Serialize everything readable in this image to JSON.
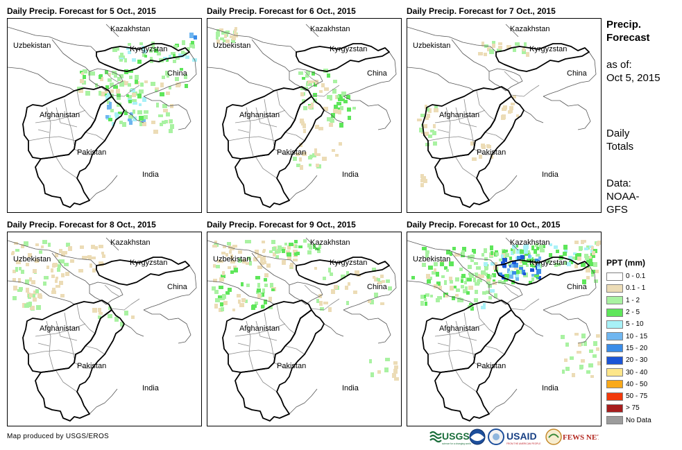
{
  "panels": [
    {
      "title": "Daily Precip. Forecast for 5 Oct., 2015"
    },
    {
      "title": "Daily Precip. Forecast for 6 Oct., 2015"
    },
    {
      "title": "Daily Precip. Forecast for 7 Oct., 2015"
    },
    {
      "title": "Daily Precip. Forecast for 8 Oct., 2015"
    },
    {
      "title": "Daily Precip. Forecast for 9 Oct., 2015"
    },
    {
      "title": "Daily Precip. Forecast for 10 Oct., 2015"
    }
  ],
  "map_labels": {
    "kazakhstan": "Kazakhstan",
    "uzbekistan": "Uzbekistan",
    "kyrgyzstan": "Kyrgyzstan",
    "china": "China",
    "afghanistan": "Afghanistan",
    "pakistan": "Pakistan",
    "india": "India"
  },
  "sidebar": {
    "title_line1": "Precip.",
    "title_line2": "Forecast",
    "asof_line1": "as of:",
    "asof_line2": "Oct 5, 2015",
    "totals_line1": "Daily",
    "totals_line2": "Totals",
    "data_line1": "Data:",
    "data_line2": "NOAA-",
    "data_line3": "GFS"
  },
  "legend": {
    "title": "PPT (mm)",
    "items": [
      {
        "label": "0 - 0.1",
        "color": "#ffffff"
      },
      {
        "label": "0.1 - 1",
        "color": "#ecdcb6"
      },
      {
        "label": "1 - 2",
        "color": "#a9f2a2"
      },
      {
        "label": "2 - 5",
        "color": "#5ee65a"
      },
      {
        "label": "5 - 10",
        "color": "#a8f1f7"
      },
      {
        "label": "10 - 15",
        "color": "#6fb6f0"
      },
      {
        "label": "15 - 20",
        "color": "#3a8ce8"
      },
      {
        "label": "20 - 30",
        "color": "#1c55d6"
      },
      {
        "label": "30 - 40",
        "color": "#fde68a"
      },
      {
        "label": "40 - 50",
        "color": "#f9a91a"
      },
      {
        "label": "50 - 75",
        "color": "#f23a0c"
      },
      {
        "label": "> 75",
        "color": "#a71d1d"
      },
      {
        "label": "No Data",
        "color": "#9c9c9c"
      }
    ]
  },
  "credit": "Map produced by USGS/EROS",
  "logos": {
    "usgs": "USGS",
    "usgs_tagline": "science for a changing world",
    "usaid": "USAID",
    "usaid_tagline": "FROM THE AMERICAN PEOPLE",
    "fewsnet": "FEWS NET"
  }
}
